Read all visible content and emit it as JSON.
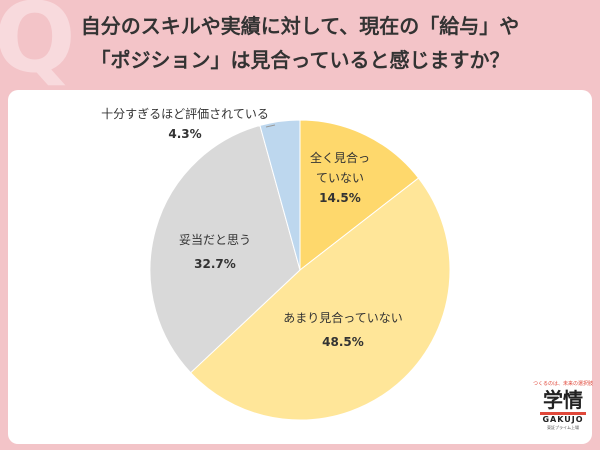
{
  "title": {
    "line1": "自分のスキルや実績に対して、現在の「給与」や",
    "line2": "「ポジション」は見合っていると感じますか？"
  },
  "chart_data": {
    "type": "pie",
    "start": "top, clockwise",
    "slices": [
      {
        "label_lines": [
          "全く見合っ",
          "ていない"
        ],
        "value": 14.5,
        "value_label": "14.5%",
        "color": "#fed86c"
      },
      {
        "label_lines": [
          "あまり見合っていない"
        ],
        "value": 48.5,
        "value_label": "48.5%",
        "color": "#ffe699"
      },
      {
        "label_lines": [
          "妥当だと思う"
        ],
        "value": 32.7,
        "value_label": "32.7%",
        "color": "#d9d9d9"
      },
      {
        "label_lines": [
          "十分すぎるほど評価されている"
        ],
        "value": 4.3,
        "value_label": "4.3%",
        "color": "#bdd7ee"
      }
    ]
  },
  "logo": {
    "tagline": "つくるのは、未来の選択肢",
    "mark": "学情",
    "brand": "GAKUJO",
    "sub": "東証プライム上場"
  },
  "colors": {
    "background": "#f3c4c8",
    "card": "#ffffff",
    "title_text": "#333333",
    "logo_accent": "#e0483a"
  }
}
